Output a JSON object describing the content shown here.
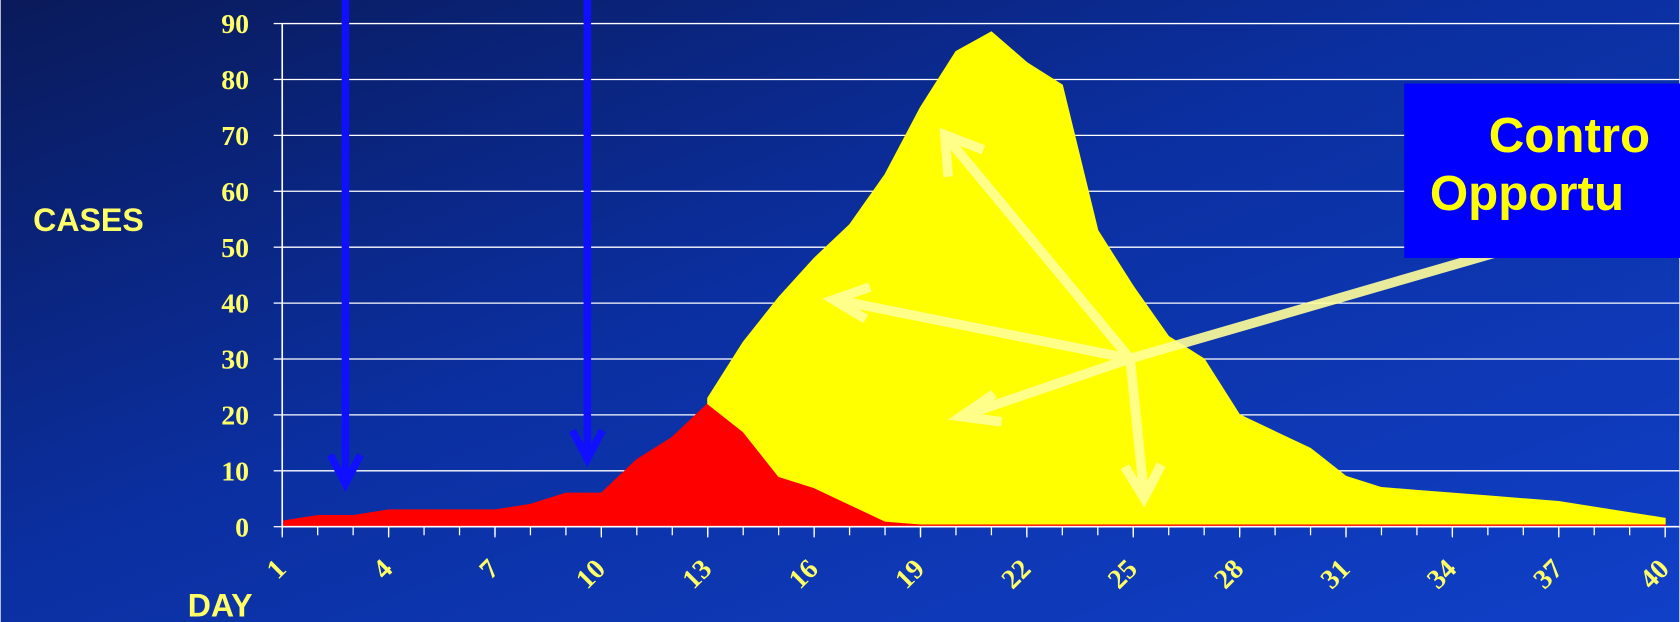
{
  "chart_data": {
    "type": "stacked_area",
    "ylabel": "CASES",
    "xlabel": "DAY",
    "annotation": [
      "Contro",
      "Opportu"
    ],
    "x": [
      1,
      2,
      3,
      4,
      5,
      6,
      7,
      8,
      9,
      10,
      11,
      12,
      13,
      14,
      15,
      16,
      17,
      18,
      19,
      20,
      21,
      22,
      23,
      24,
      25,
      26,
      27,
      28,
      29,
      30,
      31,
      32,
      33,
      34,
      35,
      36,
      37,
      38,
      39,
      40
    ],
    "series": [
      {
        "color": "#ff0000",
        "values": [
          1,
          2,
          2,
          3,
          3,
          3,
          3,
          4,
          6,
          6,
          12,
          16,
          22,
          17,
          9,
          7,
          4,
          1,
          0.5,
          0.5,
          0.5,
          0.5,
          0.5,
          0.5,
          0.5,
          0.5,
          0.5,
          0.5,
          0.5,
          0.5,
          0.5,
          0.5,
          0.5,
          0.5,
          0.5,
          0.5,
          0.5,
          0.5,
          0.5,
          0.5
        ]
      },
      {
        "color": "#ffff00",
        "values": [
          null,
          null,
          null,
          null,
          null,
          null,
          null,
          null,
          null,
          null,
          null,
          null,
          1,
          16,
          32,
          41,
          50,
          62,
          74.5,
          84.5,
          88,
          82.5,
          78.5,
          52.5,
          42.5,
          33.5,
          29.5,
          19.5,
          16.5,
          13.5,
          8.5,
          6.5,
          6,
          5.5,
          5,
          4.5,
          4,
          3,
          2,
          1
        ]
      }
    ],
    "xlim": [
      1,
      40.4
    ],
    "xticks": [
      1,
      4,
      7,
      10,
      13,
      16,
      19,
      22,
      25,
      28,
      31,
      34,
      37,
      40
    ],
    "ylim": [
      0,
      90
    ],
    "yticks": [
      0,
      10,
      20,
      30,
      40,
      50,
      60,
      70,
      80,
      90
    ],
    "grid": true
  }
}
